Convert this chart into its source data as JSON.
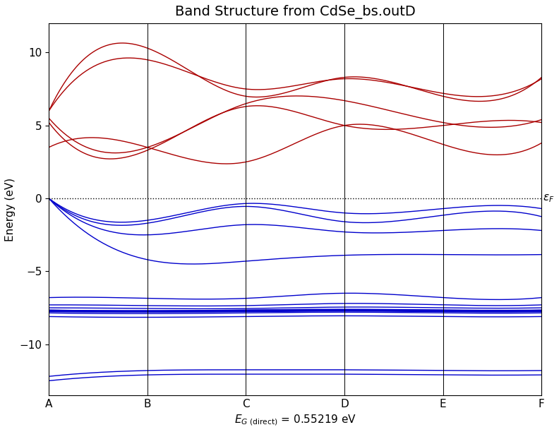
{
  "title": "Band Structure from CdSe_bs.outD",
  "ylabel": "Energy (eV)",
  "kpoints": [
    "A",
    "B",
    "C",
    "D",
    "E",
    "F"
  ],
  "kpoint_positions": [
    0,
    1,
    2,
    3,
    4,
    5
  ],
  "ylim": [
    -13.5,
    12
  ],
  "yticks": [
    -10,
    -5,
    0,
    5,
    10
  ],
  "fermi_energy": 0.0,
  "background_color": "#ffffff",
  "title_fontsize": 14,
  "axis_fontsize": 11,
  "tick_fontsize": 11,
  "conduction_color": "#aa0000",
  "valence_color": "#0000cc",
  "line_width": 1.0
}
